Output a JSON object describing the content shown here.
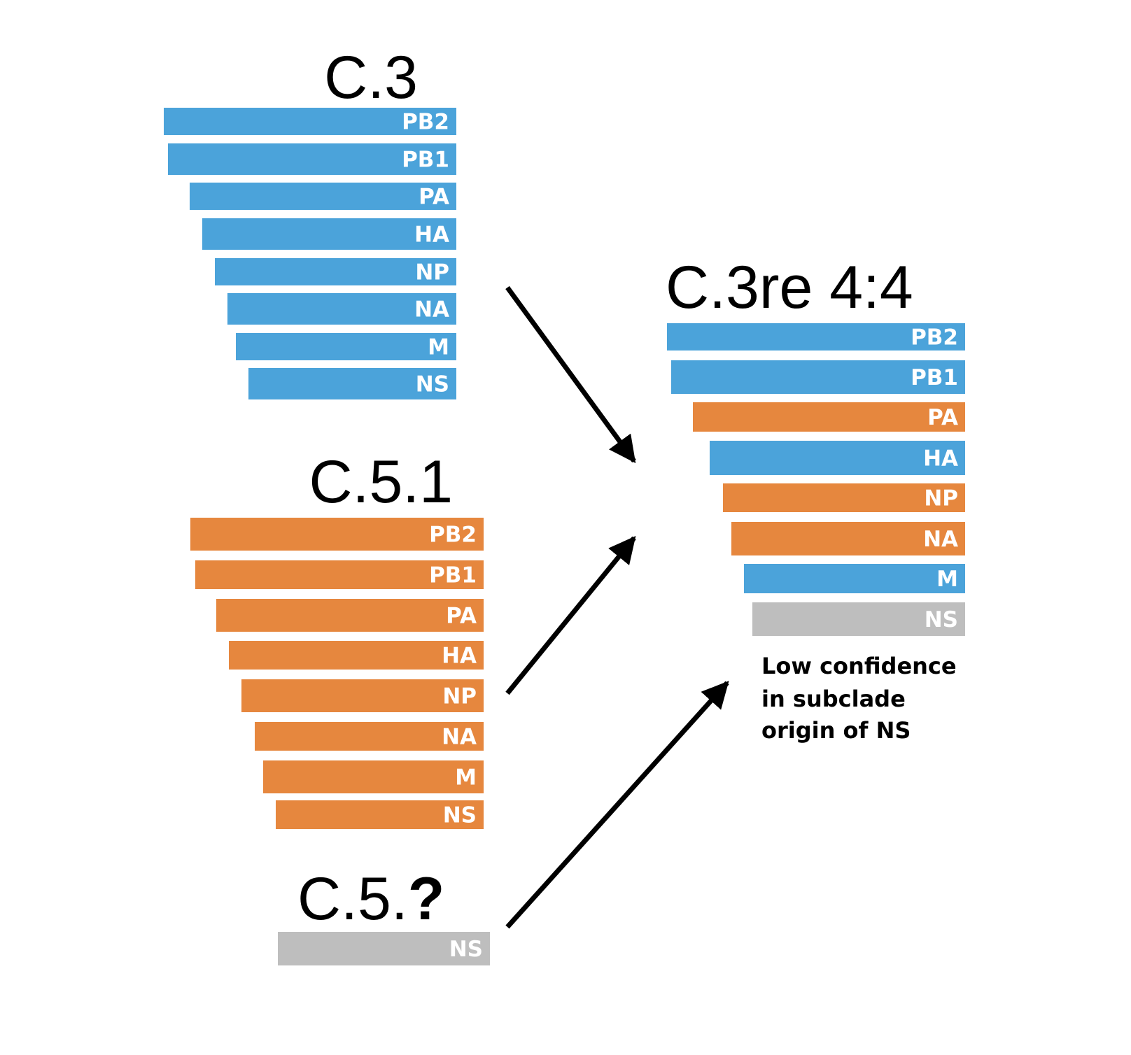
{
  "colors": {
    "C3": "#4BA3DA",
    "C5": "#E6873E",
    "unknown": "#BEBEBE"
  },
  "groups": [
    {
      "id": "c3",
      "title": "C.3",
      "segments": [
        {
          "label": "PB2",
          "origin": "C3"
        },
        {
          "label": "PB1",
          "origin": "C3"
        },
        {
          "label": "PA",
          "origin": "C3"
        },
        {
          "label": "HA",
          "origin": "C3"
        },
        {
          "label": "NP",
          "origin": "C3"
        },
        {
          "label": "NA",
          "origin": "C3"
        },
        {
          "label": "M",
          "origin": "C3"
        },
        {
          "label": "NS",
          "origin": "C3"
        }
      ]
    },
    {
      "id": "c51",
      "title": "C.5.1",
      "segments": [
        {
          "label": "PB2",
          "origin": "C5"
        },
        {
          "label": "PB1",
          "origin": "C5"
        },
        {
          "label": "PA",
          "origin": "C5"
        },
        {
          "label": "HA",
          "origin": "C5"
        },
        {
          "label": "NP",
          "origin": "C5"
        },
        {
          "label": "NA",
          "origin": "C5"
        },
        {
          "label": "M",
          "origin": "C5"
        },
        {
          "label": "NS",
          "origin": "C5"
        }
      ]
    },
    {
      "id": "c5q",
      "title_prefix": "C.5.",
      "title_suffix": "?",
      "segments": [
        {
          "label": "NS",
          "origin": "unknown"
        }
      ]
    },
    {
      "id": "c3re",
      "title": "C.3re 4:4",
      "segments": [
        {
          "label": "PB2",
          "origin": "C3"
        },
        {
          "label": "PB1",
          "origin": "C3"
        },
        {
          "label": "PA",
          "origin": "C5"
        },
        {
          "label": "HA",
          "origin": "C3"
        },
        {
          "label": "NP",
          "origin": "C5"
        },
        {
          "label": "NA",
          "origin": "C5"
        },
        {
          "label": "M",
          "origin": "C3"
        },
        {
          "label": "NS",
          "origin": "unknown"
        }
      ]
    }
  ],
  "note": {
    "lines": [
      "Low confidence",
      "in subclade",
      "origin of NS"
    ]
  }
}
